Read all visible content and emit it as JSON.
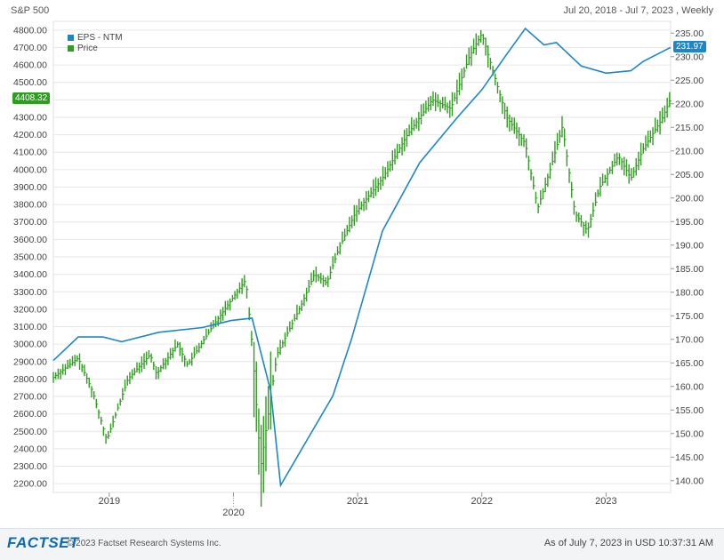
{
  "header": {
    "title": "S&P 500",
    "range": "Jul 20, 2018 - Jul 7, 2023 , Weekly"
  },
  "footer": {
    "logo": "FACTSET",
    "copyright": "© 2023 Factset Research Systems Inc.",
    "as_of": "As of July 7, 2023 in USD 10:37:31 AM"
  },
  "colors": {
    "price": "#2e9e1e",
    "eps": "#1b87c9",
    "grid": "#e6e6e6"
  },
  "chart_data": {
    "type": "line",
    "title": "S&P 500",
    "subtitle": "Jul 20, 2018 - Jul 7, 2023 , Weekly",
    "legend": [
      "EPS - NTM",
      "Price"
    ],
    "legend_position": "top-left",
    "grid": true,
    "x_ticks": [
      "2019",
      "2020",
      "2021",
      "2022",
      "2023"
    ],
    "x_range": [
      2018.55,
      2023.52
    ],
    "left_axis": {
      "series": "Price",
      "ylim": [
        2150,
        4850
      ],
      "ticks": [
        "2200.00",
        "2300.00",
        "2400.00",
        "2500.00",
        "2600.00",
        "2700.00",
        "2800.00",
        "2900.00",
        "3000.00",
        "3100.00",
        "3200.00",
        "3300.00",
        "3400.00",
        "3500.00",
        "3600.00",
        "3700.00",
        "3800.00",
        "3900.00",
        "4000.00",
        "4100.00",
        "4200.00",
        "4300.00",
        "4400.00",
        "4500.00",
        "4600.00",
        "4700.00",
        "4800.00"
      ],
      "last_value": "4408.32"
    },
    "right_axis": {
      "series": "EPS - NTM",
      "ylim": [
        137.5,
        237.5
      ],
      "ticks": [
        "140.00",
        "145.00",
        "150.00",
        "155.00",
        "160.00",
        "165.00",
        "170.00",
        "175.00",
        "180.00",
        "185.00",
        "190.00",
        "195.00",
        "200.00",
        "205.00",
        "210.00",
        "215.00",
        "220.00",
        "225.00",
        "230.00",
        "235.00"
      ],
      "last_value": "231.97"
    },
    "series": [
      {
        "name": "Price",
        "axis": "left",
        "x": [
          2018.55,
          2018.75,
          2018.87,
          2018.98,
          2019.15,
          2019.33,
          2019.38,
          2019.55,
          2019.63,
          2019.83,
          2019.98,
          2020.1,
          2020.15,
          2020.22,
          2020.35,
          2020.55,
          2020.65,
          2020.75,
          2020.85,
          2020.98,
          2021.2,
          2021.4,
          2021.6,
          2021.75,
          2021.9,
          2022.0,
          2022.2,
          2022.35,
          2022.45,
          2022.55,
          2022.65,
          2022.75,
          2022.85,
          2022.95,
          2023.1,
          2023.2,
          2023.3,
          2023.45,
          2023.52
        ],
        "values": [
          2810,
          2920,
          2720,
          2450,
          2800,
          2940,
          2830,
          3000,
          2880,
          3100,
          3250,
          3370,
          3000,
          2300,
          2940,
          3230,
          3400,
          3350,
          3550,
          3750,
          3950,
          4200,
          4400,
          4350,
          4650,
          4780,
          4300,
          4150,
          3780,
          4000,
          4250,
          3750,
          3650,
          3900,
          4080,
          3950,
          4120,
          4290,
          4408.32
        ]
      },
      {
        "name": "EPS - NTM",
        "axis": "right",
        "x": [
          2018.55,
          2018.75,
          2018.95,
          2019.1,
          2019.4,
          2019.75,
          2019.98,
          2020.15,
          2020.3,
          2020.38,
          2020.6,
          2020.8,
          2020.95,
          2021.2,
          2021.5,
          2021.8,
          2022.0,
          2022.2,
          2022.35,
          2022.5,
          2022.6,
          2022.8,
          2023.0,
          2023.2,
          2023.3,
          2023.52
        ],
        "values": [
          165.5,
          170.5,
          170.5,
          169.5,
          171.5,
          172.5,
          174.0,
          174.5,
          159.0,
          139.0,
          149.0,
          158.0,
          170.0,
          193.0,
          207.5,
          217.0,
          223.0,
          230.5,
          236.0,
          232.5,
          233.0,
          228.0,
          226.5,
          227.0,
          229.0,
          231.97
        ]
      }
    ]
  }
}
